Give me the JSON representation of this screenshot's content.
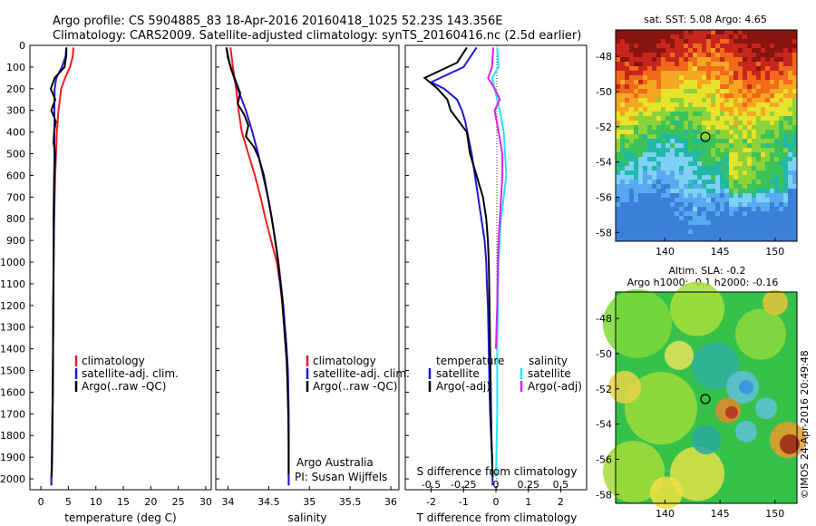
{
  "header": {
    "line1": "Argo profile: CS 5904885_83 18-Apr-2016 20160418_1025 52.23S 143.356E",
    "line2": "Climatology: CARS2009. Satellite-adjusted climatology: synTS_20160416.nc (2.5d earlier)"
  },
  "colors": {
    "climatology": "#ee1c1c",
    "satellite": "#1a1ad8",
    "argo": "#000000",
    "sat_salinity": "#22e8ee",
    "argo_adj_salinity": "#e21ee2"
  },
  "depth_ticks": [
    "0",
    "100",
    "200",
    "300",
    "400",
    "500",
    "600",
    "700",
    "800",
    "900",
    "1000",
    "1100",
    "1200",
    "1300",
    "1400",
    "1500",
    "1600",
    "1700",
    "1800",
    "1900",
    "2000"
  ],
  "temp_panel": {
    "xlabel": "temperature (deg C)",
    "xticks": [
      "0",
      "5",
      "10",
      "15",
      "20",
      "25",
      "30"
    ],
    "legend": [
      {
        "label": "climatology",
        "color": "#ee1c1c"
      },
      {
        "label": "satellite-adj. clim.",
        "color": "#1a1ad8"
      },
      {
        "label": "Argo(..raw -QC)",
        "color": "#000000"
      }
    ]
  },
  "sal_panel": {
    "xlabel": "salinity",
    "xticks": [
      "34",
      "34.5",
      "35",
      "35.5",
      "36"
    ],
    "legend": [
      {
        "label": "climatology",
        "color": "#ee1c1c"
      },
      {
        "label": "satellite-adj. clim.",
        "color": "#1a1ad8"
      },
      {
        "label": "Argo(..raw -QC)",
        "color": "#000000"
      }
    ],
    "note1": "Argo Australia",
    "note2": "PI: Susan Wijffels"
  },
  "diff_panel": {
    "temp_header": "temperature",
    "sal_header": "salinity",
    "legend_t": [
      {
        "label": "satellite",
        "color": "#1a1ad8"
      },
      {
        "label": "Argo(-adj)",
        "color": "#000000"
      }
    ],
    "legend_s": [
      {
        "label": "satellite",
        "color": "#22e8ee"
      },
      {
        "label": "Argo(-adj)",
        "color": "#e21ee2"
      }
    ],
    "s_label": "S difference from climatology",
    "s_ticks": [
      "-0.5",
      "-0.25",
      "0",
      "0.25",
      "0.5"
    ],
    "t_label": "T difference from climatology",
    "t_ticks": [
      "-2",
      "-1",
      "0",
      "1",
      "2"
    ]
  },
  "map_sst": {
    "title": "sat. SST: 5.08 Argo: 4.65",
    "lat_ticks": [
      "-48",
      "-50",
      "-52",
      "-54",
      "-56",
      "-58"
    ],
    "lon_ticks": [
      "140",
      "145",
      "150"
    ]
  },
  "map_sla": {
    "title1": "Altim. SLA: -0.2",
    "title2": "Argo h1000: -0.1 h2000: -0.16",
    "lat_ticks": [
      "-48",
      "-50",
      "-52",
      "-54",
      "-56",
      "-58"
    ],
    "lon_ticks": [
      "140",
      "145",
      "150"
    ]
  },
  "credit": "©IMOS 24-Apr-2016 20:49:48",
  "chart_data": [
    {
      "type": "line",
      "name": "temperature profile",
      "xlabel": "temperature (deg C)",
      "ylabel": "",
      "xlim": [
        -2,
        31
      ],
      "ylim": [
        2050,
        0
      ],
      "series": [
        {
          "name": "climatology",
          "color": "#ee1c1c",
          "x": [
            5.9,
            5.8,
            5.3,
            4.4,
            3.7,
            3.2,
            2.9,
            2.75,
            2.6,
            2.5,
            2.4,
            2.35,
            2.3,
            2.25,
            2.2,
            2.15,
            2.1,
            2.05,
            2.0,
            2.0,
            1.95,
            1.9
          ],
          "y": [
            10,
            50,
            100,
            150,
            200,
            300,
            400,
            500,
            600,
            700,
            800,
            900,
            1000,
            1200,
            1400,
            1600,
            1700,
            1800,
            1900,
            1950,
            2000,
            2030
          ]
        },
        {
          "name": "satellite-adj. clim.",
          "color": "#1a1ad8",
          "x": [
            4.6,
            4.5,
            3.8,
            2.8,
            2.5,
            2.45,
            2.45,
            2.45,
            2.45,
            2.45,
            2.4,
            2.35,
            2.3,
            2.25,
            2.2,
            2.15,
            2.1,
            2.05,
            2.0,
            1.95,
            1.9,
            1.9
          ],
          "y": [
            10,
            50,
            100,
            150,
            200,
            300,
            400,
            500,
            600,
            700,
            800,
            900,
            1000,
            1200,
            1400,
            1600,
            1700,
            1800,
            1900,
            1950,
            2000,
            2030
          ]
        },
        {
          "name": "Argo(..raw -QC)",
          "color": "#000000",
          "x": [
            4.65,
            4.6,
            4.3,
            2.5,
            1.8,
            2.6,
            1.9,
            2.7,
            2.4,
            2.3,
            2.6,
            2.4,
            2.35,
            2.3,
            2.3,
            2.25,
            2.2,
            2.15,
            2.1,
            2.05,
            2.0,
            1.95
          ],
          "y": [
            10,
            50,
            100,
            150,
            200,
            250,
            300,
            350,
            400,
            450,
            500,
            600,
            700,
            800,
            1000,
            1200,
            1400,
            1600,
            1800,
            1900,
            1950,
            1990
          ]
        }
      ]
    },
    {
      "type": "line",
      "name": "salinity profile",
      "xlabel": "salinity",
      "ylabel": "",
      "xlim": [
        33.85,
        36.1
      ],
      "ylim": [
        2050,
        0
      ],
      "series": [
        {
          "name": "climatology",
          "color": "#ee1c1c",
          "x": [
            34.03,
            34.06,
            34.1,
            34.13,
            34.17,
            34.25,
            34.33,
            34.4,
            34.46,
            34.53,
            34.6,
            34.64,
            34.67,
            34.7,
            34.72,
            34.735,
            34.74,
            34.745,
            34.745,
            34.745,
            34.745
          ],
          "y": [
            10,
            100,
            200,
            300,
            400,
            500,
            600,
            700,
            800,
            900,
            1000,
            1100,
            1200,
            1300,
            1400,
            1500,
            1600,
            1700,
            1800,
            1900,
            2030
          ]
        },
        {
          "name": "satellite-adj. clim.",
          "color": "#1a1ad8",
          "x": [
            33.98,
            34.03,
            34.12,
            34.22,
            34.3,
            34.37,
            34.43,
            34.49,
            34.54,
            34.58,
            34.62,
            34.65,
            34.68,
            34.7,
            34.72,
            34.735,
            34.74,
            34.745,
            34.745,
            34.745,
            34.745
          ],
          "y": [
            10,
            100,
            200,
            300,
            400,
            500,
            600,
            700,
            800,
            900,
            1000,
            1100,
            1200,
            1300,
            1400,
            1500,
            1600,
            1700,
            1800,
            1900,
            2030
          ]
        },
        {
          "name": "Argo(..raw -QC)",
          "color": "#000000",
          "x": [
            33.98,
            34.0,
            34.05,
            34.1,
            34.15,
            34.12,
            34.2,
            34.25,
            34.22,
            34.32,
            34.38,
            34.44,
            34.48,
            34.52,
            34.56,
            34.6,
            34.63,
            34.66,
            34.68,
            34.7,
            34.72,
            34.73,
            34.74,
            34.745,
            34.745
          ],
          "y": [
            10,
            60,
            120,
            170,
            220,
            270,
            320,
            370,
            420,
            470,
            520,
            600,
            680,
            760,
            850,
            950,
            1050,
            1150,
            1250,
            1350,
            1450,
            1550,
            1700,
            1850,
            1980
          ]
        }
      ]
    },
    {
      "type": "line",
      "name": "difference from climatology",
      "xlabel": "T difference from climatology",
      "x2label": "S difference from climatology",
      "ylabel": "",
      "xlim": [
        -2.8,
        2.8
      ],
      "x2lim": [
        -0.7,
        0.7
      ],
      "ylim": [
        2050,
        0
      ],
      "series": [
        {
          "name": "temperature satellite",
          "color": "#1a1ad8",
          "axis": "T",
          "x": [
            -0.6,
            -1.0,
            -2.0,
            -1.6,
            -1.2,
            -1.05,
            -0.95,
            -0.75,
            -0.55,
            -0.45,
            -0.35,
            -0.3,
            -0.28,
            -0.25,
            -0.22,
            -0.2,
            -0.18,
            -0.15,
            -0.12,
            -0.1
          ],
          "y": [
            10,
            100,
            170,
            200,
            250,
            300,
            350,
            500,
            700,
            800,
            900,
            1000,
            1100,
            1200,
            1400,
            1600,
            1700,
            1800,
            1900,
            2030
          ]
        },
        {
          "name": "temperature Argo(-adj)",
          "color": "#000000",
          "axis": "T",
          "x": [
            -0.9,
            -1.2,
            -2.2,
            -1.8,
            -1.5,
            -1.4,
            -0.9,
            -0.8,
            -0.6,
            -0.4,
            -0.3,
            -0.25,
            -0.22,
            -0.2,
            -0.18,
            -0.16,
            -0.15,
            -0.14,
            -0.12,
            -0.1
          ],
          "y": [
            10,
            80,
            150,
            200,
            250,
            300,
            400,
            500,
            600,
            700,
            800,
            900,
            1000,
            1200,
            1400,
            1600,
            1700,
            1800,
            1900,
            1990
          ]
        },
        {
          "name": "salinity satellite",
          "color": "#22e8ee",
          "axis": "S",
          "x": [
            0.01,
            0.02,
            -0.03,
            -0.01,
            0.03,
            0.06,
            0.07,
            0.08,
            0.06,
            0.04,
            0.03,
            0.02,
            0.015,
            0.01,
            0.01,
            0.0
          ],
          "y": [
            10,
            100,
            150,
            200,
            300,
            400,
            500,
            600,
            700,
            800,
            900,
            1000,
            1200,
            1400,
            1700,
            1990
          ]
        },
        {
          "name": "salinity Argo(-adj)",
          "color": "#e21ee2",
          "axis": "S",
          "x": [
            -0.02,
            -0.03,
            -0.06,
            -0.01,
            0.03,
            -0.01,
            0.02,
            0.05,
            0.05,
            0.04,
            0.03,
            0.02,
            0.015,
            0.01,
            0.0
          ],
          "y": [
            10,
            100,
            150,
            200,
            250,
            300,
            400,
            500,
            600,
            700,
            800,
            900,
            1000,
            1200,
            1400
          ]
        }
      ]
    },
    {
      "type": "heatmap",
      "name": "sat. SST map",
      "title": "sat. SST: 5.08 Argo: 4.65",
      "xlim": [
        135.5,
        152
      ],
      "ylim": [
        -58.5,
        -46.5
      ],
      "argo_position": {
        "lon": 143.356,
        "lat": -52.23
      }
    },
    {
      "type": "heatmap",
      "name": "altimetry SLA map",
      "title": "Altim. SLA: -0.2",
      "xlim": [
        135.5,
        152
      ],
      "ylim": [
        -58.5,
        -46.5
      ],
      "argo_position": {
        "lon": 143.356,
        "lat": -52.23
      }
    }
  ]
}
